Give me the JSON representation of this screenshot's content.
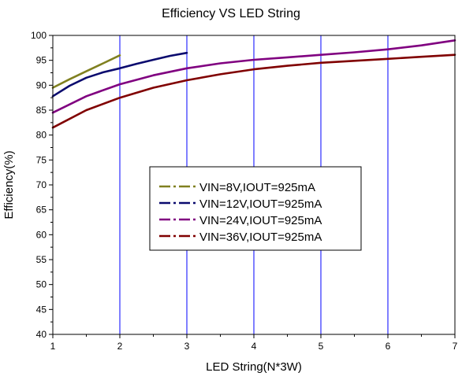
{
  "chart_data": {
    "type": "line",
    "title": "Efficiency VS LED String",
    "xlabel": "LED String(N*3W)",
    "ylabel": "Efficiency(%)",
    "xlim": [
      1,
      7
    ],
    "ylim": [
      40,
      100
    ],
    "x_ticks": [
      "1",
      "2",
      "3",
      "4",
      "5",
      "6",
      "7"
    ],
    "y_ticks": [
      "40",
      "45",
      "50",
      "55",
      "60",
      "65",
      "70",
      "75",
      "80",
      "85",
      "90",
      "95",
      "100"
    ],
    "grid": "vertical",
    "legend_position": "center",
    "series": [
      {
        "name": "VIN=8V,IOUT=925mA",
        "color": "#808020",
        "x": [
          1,
          1.25,
          1.5,
          1.75,
          2
        ],
        "values": [
          89.5,
          91.2,
          92.8,
          94.4,
          96.0
        ]
      },
      {
        "name": "VIN=12V,IOUT=925mA",
        "color": "#0a0a6e",
        "x": [
          1,
          1.25,
          1.5,
          1.75,
          2,
          2.25,
          2.5,
          2.75,
          3
        ],
        "values": [
          87.8,
          89.9,
          91.5,
          92.6,
          93.4,
          94.3,
          95.1,
          95.9,
          96.5
        ]
      },
      {
        "name": "VIN=24V,IOUT=925mA",
        "color": "#800080",
        "x": [
          1,
          1.5,
          2,
          2.5,
          3,
          3.5,
          4,
          4.5,
          5,
          5.5,
          6,
          6.5,
          7
        ],
        "values": [
          84.5,
          87.8,
          90.2,
          92.0,
          93.4,
          94.4,
          95.1,
          95.6,
          96.1,
          96.6,
          97.2,
          98.0,
          99.0
        ]
      },
      {
        "name": "VIN=36V,IOUT=925mA",
        "color": "#800000",
        "x": [
          1,
          1.5,
          2,
          2.5,
          3,
          3.5,
          4,
          4.5,
          5,
          5.5,
          6,
          6.5,
          7
        ],
        "values": [
          81.5,
          85.0,
          87.5,
          89.5,
          91.0,
          92.2,
          93.2,
          93.9,
          94.5,
          94.9,
          95.3,
          95.7,
          96.1
        ]
      }
    ]
  }
}
